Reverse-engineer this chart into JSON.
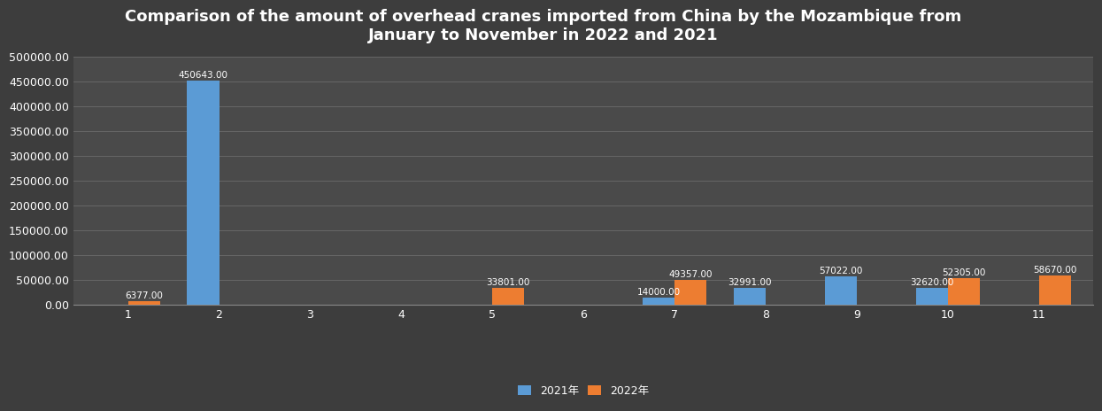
{
  "title": "Comparison of the amount of overhead cranes imported from China by the Mozambique from\nJanuary to November in 2022 and 2021",
  "months": [
    1,
    2,
    3,
    4,
    5,
    6,
    7,
    8,
    9,
    10,
    11
  ],
  "values_2021": [
    0,
    450643,
    0,
    0,
    0,
    0,
    14000,
    32991,
    57022,
    32620,
    0
  ],
  "values_2022": [
    6377,
    0,
    0,
    0,
    33801,
    0,
    49357,
    0,
    0,
    52305,
    58670
  ],
  "color_2021": "#5B9BD5",
  "color_2022": "#ED7D31",
  "bg_color": "#3d3d3d",
  "plot_bg_color": "#4a4a4a",
  "grid_color": "#666666",
  "text_color": "#ffffff",
  "legend_2021": "2021年",
  "legend_2022": "2022年",
  "ylim": [
    0,
    500000
  ],
  "yticks": [
    0,
    50000,
    100000,
    150000,
    200000,
    250000,
    300000,
    350000,
    400000,
    450000,
    500000
  ],
  "bar_width": 0.35,
  "label_fontsize": 7.5,
  "title_fontsize": 13,
  "tick_fontsize": 9,
  "legend_fontsize": 9
}
